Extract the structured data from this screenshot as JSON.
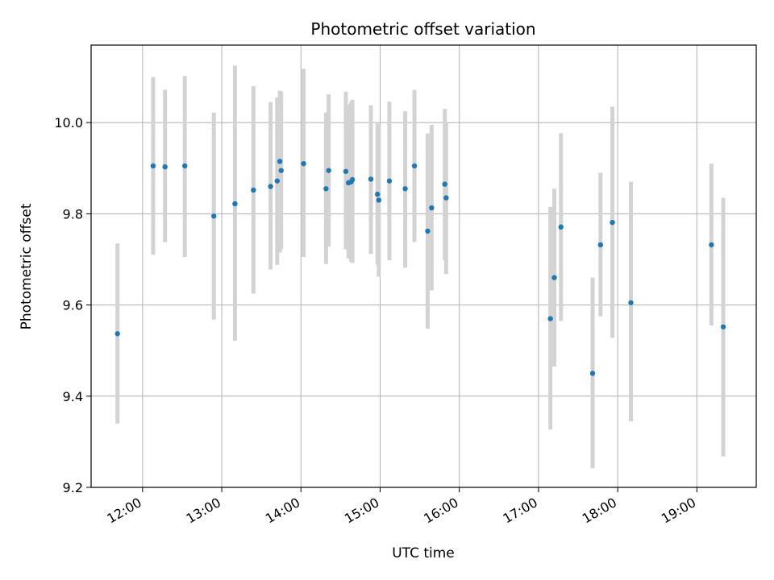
{
  "chart_data": {
    "type": "scatter",
    "title": "Photometric offset variation",
    "xlabel": "UTC time",
    "ylabel": "Photometric offset",
    "xlim": [
      "11:21",
      "19:45"
    ],
    "ylim": [
      9.2,
      10.17
    ],
    "x_ticks": [
      "12:00",
      "13:00",
      "14:00",
      "15:00",
      "16:00",
      "17:00",
      "18:00",
      "19:00"
    ],
    "y_ticks": [
      9.2,
      9.4,
      9.6,
      9.8,
      10.0
    ],
    "grid": true,
    "colors": {
      "point": "#1f77b4",
      "errorbar": "#d3d3d3",
      "grid": "#b0b0b0"
    },
    "points": [
      {
        "x": "11:41",
        "y": 9.537,
        "lo": 9.34,
        "hi": 9.735
      },
      {
        "x": "12:08",
        "y": 9.905,
        "lo": 9.71,
        "hi": 10.1
      },
      {
        "x": "12:17",
        "y": 9.903,
        "lo": 9.738,
        "hi": 10.072
      },
      {
        "x": "12:32",
        "y": 9.905,
        "lo": 9.705,
        "hi": 10.102
      },
      {
        "x": "12:54",
        "y": 9.795,
        "lo": 9.568,
        "hi": 10.022
      },
      {
        "x": "13:10",
        "y": 9.822,
        "lo": 9.522,
        "hi": 10.125
      },
      {
        "x": "13:24",
        "y": 9.852,
        "lo": 9.625,
        "hi": 10.08
      },
      {
        "x": "13:37",
        "y": 9.86,
        "lo": 9.678,
        "hi": 10.045
      },
      {
        "x": "13:42",
        "y": 9.872,
        "lo": 9.688,
        "hi": 10.055
      },
      {
        "x": "13:44",
        "y": 9.915,
        "lo": 9.715,
        "hi": 10.07
      },
      {
        "x": "13:45",
        "y": 9.895,
        "lo": 9.722,
        "hi": 10.068
      },
      {
        "x": "14:02",
        "y": 9.91,
        "lo": 9.705,
        "hi": 10.118
      },
      {
        "x": "14:19",
        "y": 9.855,
        "lo": 9.69,
        "hi": 10.022
      },
      {
        "x": "14:21",
        "y": 9.895,
        "lo": 9.728,
        "hi": 10.062
      },
      {
        "x": "14:34",
        "y": 9.893,
        "lo": 9.722,
        "hi": 10.068
      },
      {
        "x": "14:36",
        "y": 9.868,
        "lo": 9.702,
        "hi": 10.04
      },
      {
        "x": "14:38",
        "y": 9.87,
        "lo": 9.695,
        "hi": 10.045
      },
      {
        "x": "14:39",
        "y": 9.875,
        "lo": 9.692,
        "hi": 10.05
      },
      {
        "x": "14:53",
        "y": 9.876,
        "lo": 9.712,
        "hi": 10.038
      },
      {
        "x": "14:58",
        "y": 9.843,
        "lo": 9.688,
        "hi": 9.998
      },
      {
        "x": "14:59",
        "y": 9.83,
        "lo": 9.662,
        "hi": 9.996
      },
      {
        "x": "15:07",
        "y": 9.872,
        "lo": 9.698,
        "hi": 10.046
      },
      {
        "x": "15:19",
        "y": 9.855,
        "lo": 9.682,
        "hi": 10.025
      },
      {
        "x": "15:26",
        "y": 9.905,
        "lo": 9.738,
        "hi": 10.072
      },
      {
        "x": "15:36",
        "y": 9.762,
        "lo": 9.548,
        "hi": 9.976
      },
      {
        "x": "15:39",
        "y": 9.813,
        "lo": 9.632,
        "hi": 9.995
      },
      {
        "x": "15:49",
        "y": 9.865,
        "lo": 9.698,
        "hi": 10.03
      },
      {
        "x": "15:50",
        "y": 9.835,
        "lo": 9.668,
        "hi": 10.0
      },
      {
        "x": "17:09",
        "y": 9.57,
        "lo": 9.327,
        "hi": 9.815
      },
      {
        "x": "17:12",
        "y": 9.66,
        "lo": 9.465,
        "hi": 9.855
      },
      {
        "x": "17:17",
        "y": 9.771,
        "lo": 9.565,
        "hi": 9.977
      },
      {
        "x": "17:41",
        "y": 9.45,
        "lo": 9.242,
        "hi": 9.66
      },
      {
        "x": "17:47",
        "y": 9.732,
        "lo": 9.575,
        "hi": 9.89
      },
      {
        "x": "17:56",
        "y": 9.781,
        "lo": 9.528,
        "hi": 10.035
      },
      {
        "x": "18:10",
        "y": 9.605,
        "lo": 9.345,
        "hi": 9.87
      },
      {
        "x": "19:11",
        "y": 9.732,
        "lo": 9.555,
        "hi": 9.91
      },
      {
        "x": "19:20",
        "y": 9.552,
        "lo": 9.268,
        "hi": 9.835
      }
    ]
  }
}
